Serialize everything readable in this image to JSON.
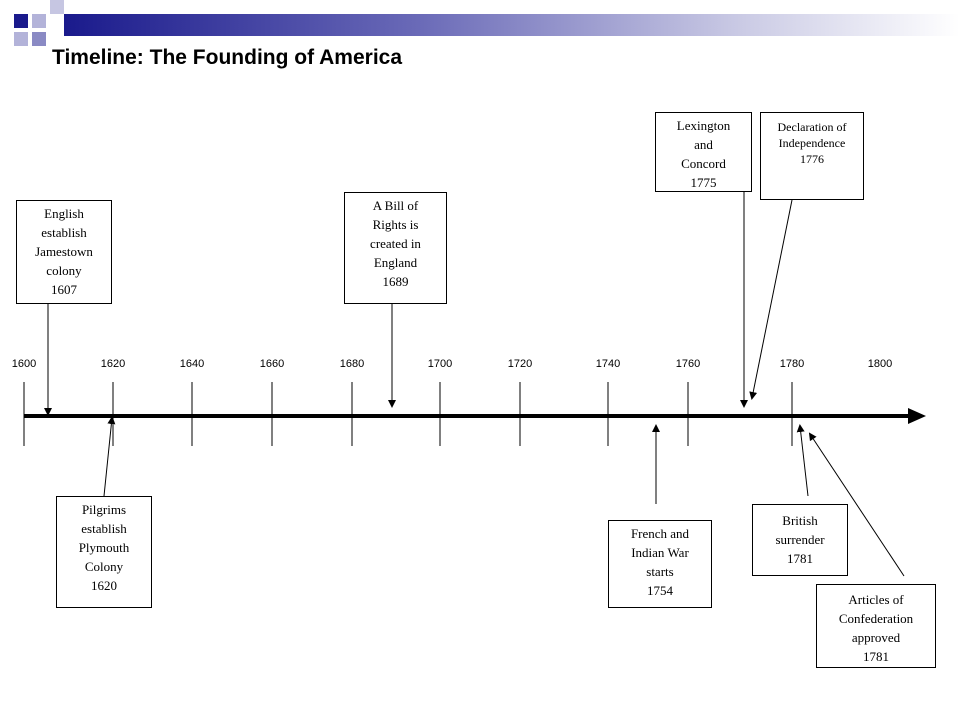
{
  "title": "Timeline: The Founding of America",
  "years": [
    "1600",
    "1620",
    "1640",
    "1660",
    "1680",
    "1700",
    "1720",
    "1740",
    "1760",
    "1780",
    "1800"
  ],
  "events": {
    "jamestown": {
      "text": "English establish Jamestown colony",
      "year": "1607"
    },
    "plymouth": {
      "text": "Pilgrims establish Plymouth Colony",
      "year": "1620"
    },
    "bill_of_rights": {
      "text": "A Bill of Rights is created in England",
      "year": "1689"
    },
    "french_indian_war": {
      "text": "French and Indian War starts",
      "year": "1754"
    },
    "lexington": {
      "text": "Lexington and Concord",
      "year": "1775"
    },
    "declaration": {
      "text": "Declaration of Independence",
      "year": "1776"
    },
    "british_surrender": {
      "text": "British surrender",
      "year": "1781"
    },
    "articles": {
      "text": "Articles of Confederation approved",
      "year": "1781"
    }
  },
  "colors": {
    "header_dark": "#1a1a8c",
    "header_light": "#c9c9e4",
    "square_dark": "#1a1a8c",
    "square_light": "#9999cc"
  }
}
